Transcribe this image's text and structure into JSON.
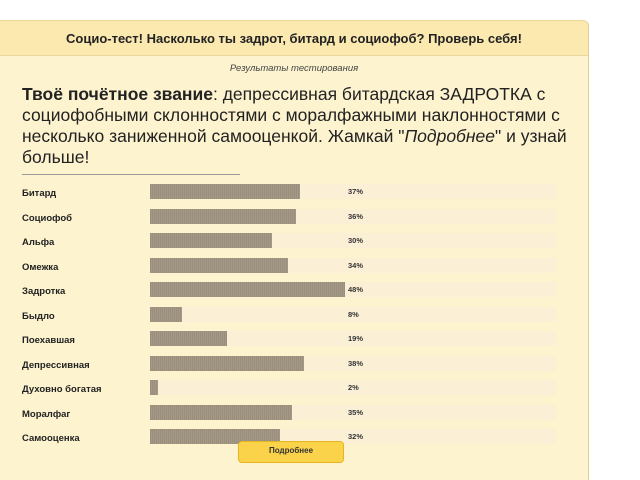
{
  "header": {
    "title": "Социо-тест! Насколько ты задрот, битард и социофоб? Проверь себя!"
  },
  "subtitle": "Результаты тестирования",
  "rank": {
    "label": "Твоё почётное звание",
    "text_before": ": депрессивная битардская ЗАДРОТКА с социофобными склонностями с моралфажными наклонностями с несколько заниженной самооценкой. Жамкай \"",
    "emphasis": "Подробнее",
    "text_after": "\" и узнай больше!"
  },
  "results": [
    {
      "label": "Битард",
      "value": 37,
      "pct_text": "37%"
    },
    {
      "label": "Социофоб",
      "value": 36,
      "pct_text": "36%"
    },
    {
      "label": "Альфа",
      "value": 30,
      "pct_text": "30%"
    },
    {
      "label": "Омежка",
      "value": 34,
      "pct_text": "34%"
    },
    {
      "label": "Задротка",
      "value": 48,
      "pct_text": "48%"
    },
    {
      "label": "Быдло",
      "value": 8,
      "pct_text": "8%"
    },
    {
      "label": "Поехавшая",
      "value": 19,
      "pct_text": "19%"
    },
    {
      "label": "Депрессивная",
      "value": 38,
      "pct_text": "38%"
    },
    {
      "label": "Духовно богатая",
      "value": 2,
      "pct_text": "2%"
    },
    {
      "label": "Моралфаг",
      "value": 35,
      "pct_text": "35%"
    },
    {
      "label": "Самооценка",
      "value": 32,
      "pct_text": "32%"
    }
  ],
  "more_button": {
    "label": "Подробнее"
  },
  "colors": {
    "panel_bg": "#fdf3cf",
    "bar_fill": "#a09482",
    "bar_track": "#fbf0d6",
    "button": "#fbd34b"
  }
}
